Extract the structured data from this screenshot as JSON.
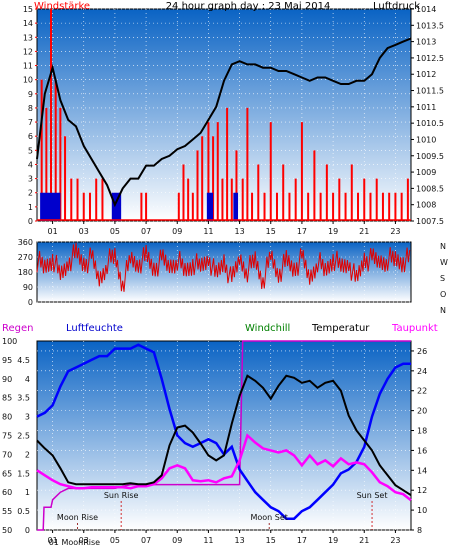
{
  "colors": {
    "wind": "#ff0000",
    "windDark": "#0000cc",
    "pressure": "#000000",
    "direction": "#e00000",
    "humidity": "#0000ff",
    "temperature": "#000000",
    "dewpoint": "#ff00ff",
    "rain": "#cc00cc",
    "windchill": "#008000",
    "gradientTop": "#0a63c4",
    "gradientBottom": "#ffffff"
  },
  "chart_data": [
    {
      "type": "line",
      "title": "24 hour graph day : 23 Mai 2014",
      "left_axis_label": "Windstärke",
      "right_axis_label": "Luftdruck",
      "x_ticks": [
        "01",
        "03",
        "05",
        "07",
        "09",
        "11",
        "13",
        "15",
        "17",
        "19",
        "21",
        "23"
      ],
      "x_range": [
        0,
        24
      ],
      "y_left_ticks": [
        "0",
        "1",
        "2",
        "3",
        "4",
        "5",
        "6",
        "7",
        "8",
        "9",
        "10",
        "11",
        "12",
        "13",
        "14",
        "15"
      ],
      "y_left_range": [
        0,
        15
      ],
      "y_right_ticks": [
        "1007.5",
        "1008",
        "1008.5",
        "1009",
        "1009.5",
        "1010",
        "1010.5",
        "1011",
        "1011.5",
        "1012",
        "1012.5",
        "1013",
        "1013.5",
        "1014"
      ],
      "y_right_range": [
        1007.5,
        1014
      ],
      "series": [
        {
          "name": "Luftdruck",
          "axis": "right",
          "x": [
            0,
            0.5,
            1,
            1.5,
            2,
            2.5,
            3,
            3.5,
            4,
            4.5,
            5,
            5.5,
            6,
            6.5,
            7,
            7.5,
            8,
            8.5,
            9,
            9.5,
            10,
            10.5,
            11,
            11.5,
            12,
            12.5,
            13,
            13.5,
            14,
            14.5,
            15,
            15.5,
            16,
            16.5,
            17,
            17.5,
            18,
            18.5,
            19,
            19.5,
            20,
            20.5,
            21,
            21.5,
            22,
            22.5,
            23,
            23.5,
            24
          ],
          "values": [
            1009.4,
            1011.4,
            1012.2,
            1011.2,
            1010.6,
            1010.4,
            1009.8,
            1009.4,
            1009.0,
            1008.6,
            1008.0,
            1008.5,
            1008.8,
            1008.8,
            1009.2,
            1009.2,
            1009.4,
            1009.5,
            1009.7,
            1009.8,
            1010.0,
            1010.2,
            1010.6,
            1011.0,
            1011.8,
            1012.3,
            1012.4,
            1012.3,
            1012.3,
            1012.2,
            1012.2,
            1012.1,
            1012.1,
            1012.0,
            1011.9,
            1011.8,
            1011.9,
            1011.9,
            1011.8,
            1011.7,
            1011.7,
            1011.8,
            1011.8,
            1012.0,
            1012.5,
            1012.8,
            1012.9,
            1013.0,
            1013.1
          ]
        },
        {
          "name": "Windstärke",
          "axis": "left",
          "type": "bar",
          "x": [
            0.3,
            0.6,
            0.9,
            1.2,
            1.5,
            1.8,
            2.2,
            2.6,
            3.0,
            3.4,
            3.8,
            4.2,
            6.7,
            7.0,
            9.1,
            9.4,
            9.7,
            10.0,
            10.3,
            10.6,
            11.0,
            11.3,
            11.6,
            11.9,
            12.2,
            12.5,
            12.8,
            13.2,
            13.5,
            13.8,
            14.2,
            14.6,
            15.0,
            15.4,
            15.8,
            16.2,
            16.6,
            17.0,
            17.4,
            17.8,
            18.2,
            18.6,
            19.0,
            19.4,
            19.8,
            20.2,
            20.6,
            21.0,
            21.4,
            21.8,
            22.2,
            22.6,
            23.0,
            23.4,
            23.8
          ],
          "values": [
            10,
            8,
            15,
            10,
            8,
            6,
            3,
            3,
            2,
            2,
            3,
            3,
            2,
            2,
            2,
            4,
            3,
            2,
            5,
            6,
            7,
            6,
            7,
            3,
            8,
            3,
            5,
            3,
            8,
            2,
            4,
            2,
            7,
            2,
            4,
            2,
            3,
            7,
            2,
            5,
            2,
            4,
            2,
            3,
            2,
            4,
            2,
            3,
            2,
            3,
            2,
            2,
            2,
            2,
            3
          ]
        }
      ]
    },
    {
      "type": "scatter",
      "title": "",
      "right_axis_label": "N W S O N",
      "x_range": [
        0,
        24
      ],
      "y_left_ticks": [
        "0",
        "90",
        "180",
        "270",
        "360"
      ],
      "y_range": [
        0,
        360
      ],
      "series": [
        {
          "name": "Windrichtung",
          "x": [
            0,
            0.5,
            1,
            1.5,
            2,
            2.5,
            3,
            3.5,
            4,
            4.5,
            5,
            5.5,
            6,
            6.5,
            7,
            7.5,
            8,
            8.5,
            9,
            9.5,
            10,
            10.5,
            11,
            11.5,
            12,
            12.5,
            13,
            13.5,
            14,
            14.5,
            15,
            15.5,
            16,
            16.5,
            17,
            17.5,
            18,
            18.5,
            19,
            19.5,
            20,
            20.5,
            21,
            21.5,
            22,
            22.5,
            23,
            23.5,
            24
          ],
          "values": [
            250,
            200,
            270,
            150,
            240,
            290,
            230,
            260,
            130,
            240,
            270,
            110,
            250,
            230,
            270,
            200,
            250,
            210,
            260,
            180,
            240,
            200,
            270,
            150,
            250,
            120,
            260,
            190,
            250,
            130,
            270,
            170,
            240,
            200,
            260,
            140,
            250,
            180,
            270,
            200,
            240,
            120,
            260,
            250,
            240,
            260,
            250,
            250,
            260
          ]
        }
      ]
    },
    {
      "type": "line",
      "title": "",
      "labels": {
        "rain": "Regen",
        "humidity": "Luftfeuchte",
        "windchill": "Windchill",
        "temperature": "Temperatur",
        "dewpoint": "Taupunkt"
      },
      "x_ticks": [
        "01",
        "03",
        "05",
        "07",
        "09",
        "11",
        "13",
        "15",
        "17",
        "19",
        "21",
        "23"
      ],
      "x_range": [
        0,
        24
      ],
      "rain_axis_ticks": [
        "0",
        "0.5",
        "1",
        "1.5",
        "2",
        "2.5",
        "3",
        "3.5",
        "4",
        "4.5"
      ],
      "rain_range": [
        0,
        5
      ],
      "humidity_axis_ticks": [
        "50",
        "55",
        "60",
        "65",
        "70",
        "75",
        "80",
        "85",
        "90",
        "95",
        "100"
      ],
      "humidity_range": [
        50,
        100
      ],
      "temp_axis_ticks": [
        "8",
        "10",
        "12",
        "14",
        "16",
        "18",
        "20",
        "22",
        "24",
        "26"
      ],
      "temp_range": [
        8,
        27
      ],
      "annotations": [
        {
          "text": "Sun Rise",
          "x": 5.4
        },
        {
          "text": "Sun Set",
          "x": 21.5
        },
        {
          "text": "Moon Rise",
          "x": 2.6
        },
        {
          "text": "Moon Set",
          "x": 14.9
        },
        {
          "text": "01 MoonRise",
          "x": 2.4
        }
      ],
      "series": [
        {
          "name": "Luftfeuchte",
          "axis": "humidity",
          "x": [
            0,
            0.5,
            1,
            1.5,
            2,
            2.5,
            3,
            3.5,
            4,
            4.5,
            5,
            5.5,
            6,
            6.5,
            7,
            7.5,
            8,
            8.5,
            9,
            9.5,
            10,
            10.5,
            11,
            11.5,
            12,
            12.5,
            13,
            13.5,
            14,
            14.5,
            15,
            15.5,
            16,
            16.5,
            17,
            17.5,
            18,
            18.5,
            19,
            19.5,
            20,
            20.5,
            21,
            21.5,
            22,
            22.5,
            23,
            23.5,
            24
          ],
          "values": [
            80,
            81,
            83,
            88,
            92,
            93,
            94,
            95,
            96,
            96,
            98,
            98,
            98,
            99,
            98,
            97,
            90,
            82,
            75,
            73,
            72,
            73,
            74,
            73,
            70,
            72,
            66,
            63,
            60,
            58,
            56,
            55,
            53,
            53,
            55,
            56,
            58,
            60,
            62,
            65,
            66,
            68,
            72,
            80,
            86,
            90,
            93,
            94,
            94
          ]
        },
        {
          "name": "Temperatur",
          "axis": "temp",
          "x": [
            0,
            0.5,
            1,
            1.5,
            2,
            2.5,
            3,
            3.5,
            4,
            4.5,
            5,
            5.5,
            6,
            6.5,
            7,
            7.5,
            8,
            8.5,
            9,
            9.5,
            10,
            10.5,
            11,
            11.5,
            12,
            12.5,
            13,
            13.5,
            14,
            14.5,
            15,
            15.5,
            16,
            16.5,
            17,
            17.5,
            18,
            18.5,
            19,
            19.5,
            20,
            20.5,
            21,
            21.5,
            22,
            22.5,
            23,
            23.5,
            24
          ],
          "values": [
            17,
            16.2,
            15.5,
            14.2,
            12.8,
            12.6,
            12.6,
            12.6,
            12.6,
            12.6,
            12.6,
            12.6,
            12.7,
            12.6,
            12.6,
            12.8,
            13.5,
            16.5,
            18.3,
            18.5,
            17.8,
            16.7,
            15.5,
            15.0,
            15.5,
            18.7,
            21.5,
            23.5,
            23.0,
            22.3,
            21.2,
            22.5,
            23.5,
            23.3,
            22.8,
            23.0,
            22.3,
            22.8,
            23.0,
            22.0,
            19.5,
            18.0,
            17.0,
            16.0,
            14.5,
            13.5,
            12.5,
            12.0,
            11.5
          ]
        },
        {
          "name": "Taupunkt",
          "axis": "temp",
          "x": [
            0,
            0.5,
            1,
            1.5,
            2,
            2.5,
            3,
            3.5,
            4,
            4.5,
            5,
            5.5,
            6,
            6.5,
            7,
            7.5,
            8,
            8.5,
            9,
            9.5,
            10,
            10.5,
            11,
            11.5,
            12,
            12.5,
            13,
            13.5,
            14,
            14.5,
            15,
            15.5,
            16,
            16.5,
            17,
            17.5,
            18,
            18.5,
            19,
            19.5,
            20,
            20.5,
            21,
            21.5,
            22,
            22.5,
            23,
            23.5,
            24
          ],
          "values": [
            14,
            13.5,
            13,
            12.6,
            12.4,
            12.2,
            12.2,
            12.3,
            12.3,
            12.3,
            12.3,
            12.3,
            12.2,
            12.4,
            12.4,
            12.6,
            13.2,
            14.2,
            14.5,
            14.2,
            13.0,
            12.9,
            13.0,
            12.8,
            13.2,
            13.4,
            15.0,
            17.5,
            16.8,
            16.2,
            16.0,
            15.8,
            16.0,
            15.5,
            14.5,
            15.5,
            14.6,
            15.0,
            14.4,
            15.2,
            14.6,
            14.8,
            14.6,
            13.8,
            12.8,
            12.4,
            11.8,
            11.6,
            11.0
          ]
        },
        {
          "name": "Regen",
          "axis": "rain",
          "x": [
            0,
            0.4,
            0.45,
            0.9,
            1,
            1.5,
            2,
            3,
            4,
            5,
            6,
            7,
            8,
            9,
            10,
            11,
            12,
            12.5,
            13,
            13.2,
            13.5,
            14,
            15,
            16,
            17,
            18,
            19,
            20,
            21,
            22,
            23,
            24
          ],
          "values": [
            0,
            0,
            0.6,
            0.6,
            0.8,
            1.0,
            1.1,
            1.1,
            1.1,
            1.1,
            1.2,
            1.2,
            1.2,
            1.2,
            1.2,
            1.2,
            1.2,
            1.2,
            1.2,
            5.0,
            5.0,
            5.0,
            5.0,
            5.0,
            5.0,
            5.0,
            5.0,
            5.0,
            5.0,
            5.0,
            5.0,
            5.0
          ]
        }
      ]
    }
  ]
}
